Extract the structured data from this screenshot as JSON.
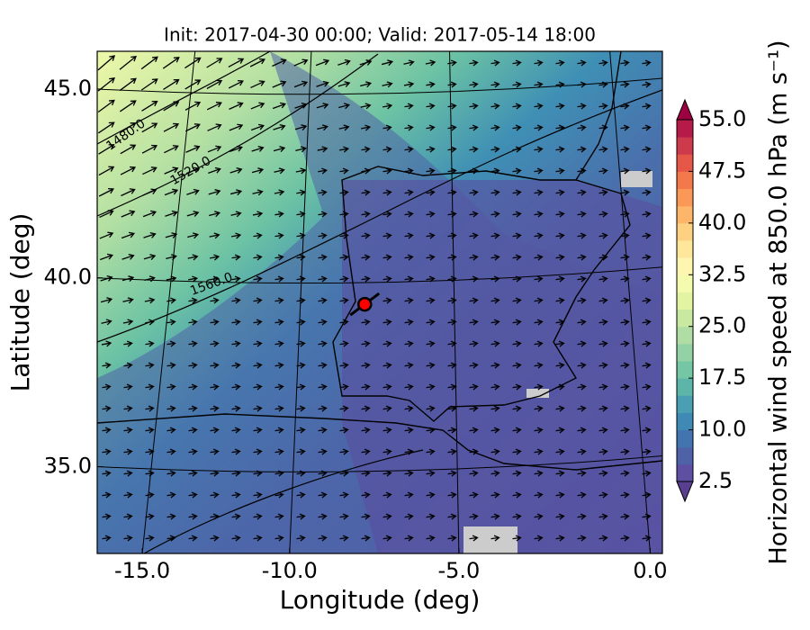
{
  "map": {
    "title": "Init: 2017-04-30 00:00; Valid: 2017-05-14 18:00",
    "x_label": "Longitude (deg)",
    "y_label": "Latitude (deg)",
    "xlim": [
      -16.7,
      0.3
    ],
    "ylim": [
      32.7,
      46.0
    ],
    "xticks": [
      {
        "value": -15,
        "label": "-15.0"
      },
      {
        "value": -10,
        "label": "-10.0"
      },
      {
        "value": -5,
        "label": "-5.0"
      },
      {
        "value": 0,
        "label": "0.0"
      }
    ],
    "yticks": [
      {
        "value": 35,
        "label": "35.0"
      },
      {
        "value": 40,
        "label": "40.0"
      },
      {
        "value": 45,
        "label": "45.0"
      }
    ],
    "colorbar": {
      "label": "Horizontal wind speed at 850.0 hPa (m s⁻¹)",
      "lim": [
        2.5,
        55
      ],
      "ticks": [
        {
          "value": 2.5,
          "label": "2.5"
        },
        {
          "value": 10,
          "label": "10.0"
        },
        {
          "value": 17.5,
          "label": "17.5"
        },
        {
          "value": 25,
          "label": "25.0"
        },
        {
          "value": 32.5,
          "label": "32.5"
        },
        {
          "value": 40,
          "label": "40.0"
        },
        {
          "value": 47.5,
          "label": "47.5"
        },
        {
          "value": 55,
          "label": "55.0"
        }
      ],
      "colors": [
        "#5e4fa2",
        "#4f62a8",
        "#4275b0",
        "#3e8ab5",
        "#4a9fb3",
        "#5db4a9",
        "#74c6a5",
        "#92d2a4",
        "#afdda3",
        "#c9e9a0",
        "#e2f4a2",
        "#f4faae",
        "#fdf5b0",
        "#fee79a",
        "#fed082",
        "#fdb56a",
        "#fa9857",
        "#f3784b",
        "#e55848",
        "#cd3a4c",
        "#b61a49"
      ],
      "extend_colors": [
        "#5a3f91",
        "#9e0142"
      ]
    },
    "contour_labels": [
      "1480.0",
      "1520.0",
      "1560.0"
    ],
    "marker": {
      "lon": -7.7,
      "lat": 39.3,
      "color": "#ff0000"
    }
  }
}
